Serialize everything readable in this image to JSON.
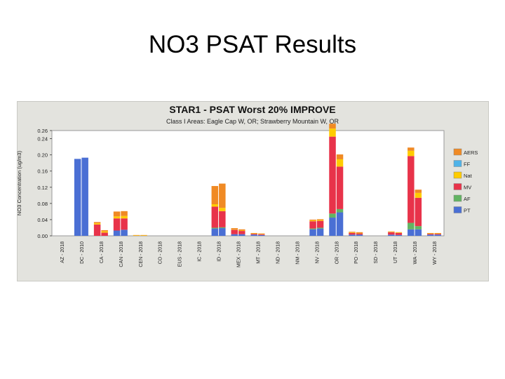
{
  "slide": {
    "title": "NO3 PSAT Results"
  },
  "chart_data": {
    "type": "bar",
    "stacked": true,
    "title": "STAR1 - PSAT Worst 20% IMPROVE",
    "subtitle": "Class I Areas: Eagle Cap W, OR; Strawberry Mountain W, OR",
    "ylabel": "NO3 Concentration (ug/m3)",
    "xlabel": "",
    "ylim": [
      0,
      0.26
    ],
    "yticks": [
      "0.00",
      "0.04",
      "0.08",
      "0.12",
      "0.16",
      "0.20",
      "0.24",
      "0.26"
    ],
    "ytick_values": [
      0,
      0.04,
      0.08,
      0.12,
      0.16,
      0.2,
      0.24,
      0.26
    ],
    "grid": false,
    "legend_position": "right",
    "categories": [
      "AZ - 2018",
      "DC - 2010",
      "CA - 2018",
      "CAN - 2018",
      "CEN - 2018",
      "CO - 2018",
      "EUS - 2018",
      "IC - 2018",
      "ID - 2018",
      "MEX - 2018",
      "MT - 2018",
      "ND - 2018",
      "NM - 2018",
      "NV - 2018",
      "OR - 2018",
      "PO - 2018",
      "SD - 2018",
      "UT - 2018",
      "WA - 2018",
      "WY - 2018"
    ],
    "series": [
      {
        "name": "PT",
        "color": "#4a6fd4",
        "values": [
          [
            0.19,
            0.193
          ],
          [
            0.0,
            0.0
          ],
          [
            0.013,
            0.015
          ],
          [
            0,
            0
          ],
          [
            0,
            0
          ],
          [
            0,
            0
          ],
          [
            0.018,
            0.019
          ],
          [
            0.004,
            0.004
          ],
          [
            0.003,
            0.002
          ],
          [
            0.016,
            0.018
          ],
          [
            0.045,
            0.058
          ],
          [
            0.003,
            0.003
          ],
          [
            0.003,
            0.002
          ],
          [
            0.016,
            0.016
          ],
          [
            0.003,
            0.003
          ]
        ]
      },
      {
        "name": "AF",
        "color": "#62b462",
        "values": [
          [
            0,
            0
          ],
          [
            0,
            0
          ],
          [
            0,
            0
          ],
          [
            0,
            0
          ],
          [
            0,
            0
          ],
          [
            0,
            0
          ],
          [
            0.002,
            0.002
          ],
          [
            0,
            0
          ],
          [
            0,
            0
          ],
          [
            0.002,
            0.002
          ],
          [
            0.01,
            0.008
          ],
          [
            0,
            0
          ],
          [
            0,
            0
          ],
          [
            0.016,
            0.008
          ],
          [
            0,
            0
          ]
        ]
      },
      {
        "name": "MV",
        "color": "#e8334a",
        "values": [
          [
            0,
            0
          ],
          [
            0.028,
            0.008
          ],
          [
            0.03,
            0.028
          ],
          [
            0,
            0
          ],
          [
            0,
            0
          ],
          [
            0,
            0
          ],
          [
            0.052,
            0.04
          ],
          [
            0.011,
            0.008
          ],
          [
            0.002,
            0.002
          ],
          [
            0.018,
            0.017
          ],
          [
            0.19,
            0.105
          ],
          [
            0.004,
            0.003
          ],
          [
            0.006,
            0.005
          ],
          [
            0.165,
            0.07
          ],
          [
            0.002,
            0.002
          ]
        ]
      },
      {
        "name": "Nat",
        "color": "#ffcc00",
        "values": [
          [
            0,
            0
          ],
          [
            0.003,
            0.003
          ],
          [
            0.005,
            0.006
          ],
          [
            0.001,
            0.001
          ],
          [
            0,
            0
          ],
          [
            0,
            0
          ],
          [
            0.006,
            0.008
          ],
          [
            0.001,
            0.001
          ],
          [
            0.001,
            0.001
          ],
          [
            0.002,
            0.002
          ],
          [
            0.02,
            0.018
          ],
          [
            0.001,
            0.001
          ],
          [
            0.001,
            0.001
          ],
          [
            0.013,
            0.012
          ],
          [
            0.001,
            0.001
          ]
        ]
      },
      {
        "name": "FF",
        "color": "#4fb3e8",
        "values": [
          [
            0,
            0
          ],
          [
            0,
            0
          ],
          [
            0,
            0
          ],
          [
            0,
            0
          ],
          [
            0,
            0
          ],
          [
            0,
            0
          ],
          [
            0,
            0
          ],
          [
            0,
            0
          ],
          [
            0,
            0
          ],
          [
            0,
            0
          ],
          [
            0,
            0
          ],
          [
            0,
            0
          ],
          [
            0,
            0
          ],
          [
            0,
            0
          ],
          [
            0,
            0
          ]
        ]
      },
      {
        "name": "AERS",
        "color": "#f08a24",
        "values": [
          [
            0,
            0
          ],
          [
            0.003,
            0.003
          ],
          [
            0.012,
            0.012
          ],
          [
            0.001,
            0.001
          ],
          [
            0,
            0
          ],
          [
            0,
            0
          ],
          [
            0.045,
            0.06
          ],
          [
            0.003,
            0.003
          ],
          [
            0.001,
            0.001
          ],
          [
            0.002,
            0.002
          ],
          [
            0.012,
            0.012
          ],
          [
            0.002,
            0.002
          ],
          [
            0.001,
            0.001
          ],
          [
            0.008,
            0.008
          ],
          [
            0.001,
            0.001
          ]
        ]
      }
    ],
    "bar_groups": [
      "DC - 2010",
      "CA - 2018",
      "CAN - 2018",
      "CEN - 2018",
      "CO - 2018",
      "EUS - 2018",
      "ID - 2018",
      "MEX - 2018",
      "MT - 2018",
      "NV - 2018",
      "OR - 2018",
      "PO - 2018",
      "UT - 2018",
      "WA - 2018",
      "WY - 2018"
    ]
  }
}
